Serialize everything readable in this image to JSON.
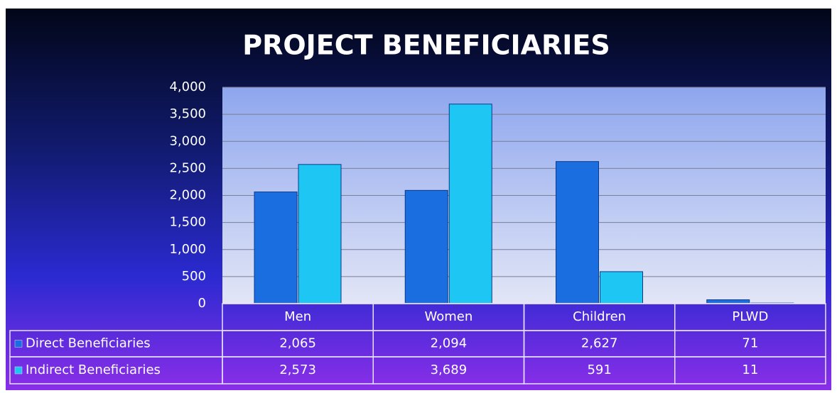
{
  "chart_data": {
    "type": "bar",
    "title": "PROJECT BENEFICIARIES",
    "categories": [
      "Men",
      "Women",
      "Children",
      "PLWD"
    ],
    "series": [
      {
        "name": "Direct Beneficiaries",
        "color": "#1a6ee0",
        "values": [
          2065,
          2094,
          2627,
          71
        ],
        "value_labels": [
          "2,065",
          "2,094",
          "2,627",
          "71"
        ]
      },
      {
        "name": "Indirect Beneficiaries",
        "color": "#1ec6f4",
        "values": [
          2573,
          3689,
          591,
          11
        ],
        "value_labels": [
          "2,573",
          "3,689",
          "591",
          "11"
        ]
      }
    ],
    "ylim": [
      0,
      4000
    ],
    "yticks": [
      0,
      500,
      {
        "value": 1000,
        "label": "1,000"
      },
      {
        "value": 1500,
        "label": "1,500"
      },
      {
        "value": 2000,
        "label": "2,000"
      },
      {
        "value": 2500,
        "label": "2,500"
      },
      {
        "value": 3000,
        "label": "3,000"
      },
      {
        "value": 3500,
        "label": "3,500"
      },
      {
        "value": 4000,
        "label": "4,000"
      }
    ],
    "grid": true
  }
}
